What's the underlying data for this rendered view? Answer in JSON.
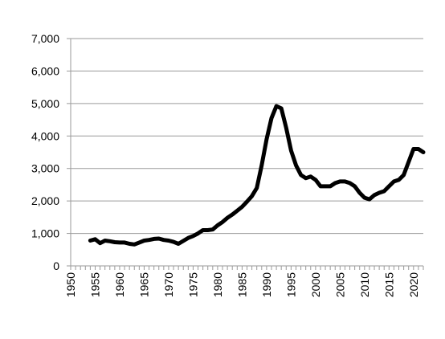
{
  "chart_data": {
    "type": "line",
    "title": "",
    "xlabel": "",
    "ylabel": "",
    "xlim": [
      1950,
      2022
    ],
    "ylim": [
      0,
      7000
    ],
    "x_ticks": [
      1950,
      1955,
      1960,
      1965,
      1970,
      1975,
      1980,
      1985,
      1990,
      1995,
      2000,
      2005,
      2010,
      2015,
      2020
    ],
    "x_tick_labels": [
      "1950",
      "1955",
      "1960",
      "1965",
      "1970",
      "1975",
      "1980",
      "1985",
      "1990",
      "1995",
      "2000",
      "2005",
      "2010",
      "2015",
      "2020"
    ],
    "y_ticks": [
      0,
      1000,
      2000,
      3000,
      4000,
      5000,
      6000,
      7000
    ],
    "y_tick_labels": [
      "0",
      "1,000",
      "2,000",
      "3,000",
      "4,000",
      "5,000",
      "6,000",
      "7,000"
    ],
    "grid": "horizontal",
    "legend": "none",
    "line_color": "#000000",
    "grid_color": "#9a9a9a",
    "series": [
      {
        "x": [
          1954,
          1955,
          1956,
          1957,
          1958,
          1959,
          1960,
          1961,
          1962,
          1963,
          1964,
          1965,
          1966,
          1967,
          1968,
          1969,
          1970,
          1971,
          1972,
          1973,
          1974,
          1975,
          1976,
          1977,
          1978,
          1979,
          1980,
          1981,
          1982,
          1983,
          1984,
          1985,
          1986,
          1987,
          1988,
          1989,
          1990,
          1991,
          1992,
          1993,
          1994,
          1995,
          1996,
          1997,
          1998,
          1999,
          2000,
          2001,
          2002,
          2003,
          2004,
          2005,
          2006,
          2007,
          2008,
          2009,
          2010,
          2011,
          2012,
          2013,
          2014,
          2015,
          2016,
          2017,
          2018,
          2019,
          2020,
          2021,
          2022
        ],
        "y": [
          780,
          820,
          700,
          780,
          760,
          730,
          720,
          720,
          680,
          660,
          720,
          780,
          800,
          830,
          840,
          800,
          780,
          740,
          680,
          770,
          860,
          920,
          1000,
          1100,
          1100,
          1120,
          1250,
          1350,
          1480,
          1580,
          1700,
          1820,
          1980,
          2150,
          2400,
          3100,
          3900,
          4550,
          4920,
          4850,
          4250,
          3550,
          3100,
          2800,
          2700,
          2750,
          2650,
          2450,
          2450,
          2450,
          2550,
          2600,
          2600,
          2550,
          2450,
          2250,
          2100,
          2050,
          2180,
          2250,
          2300,
          2450,
          2600,
          2650,
          2800,
          3200,
          3600,
          3600,
          3500
        ]
      }
    ]
  }
}
